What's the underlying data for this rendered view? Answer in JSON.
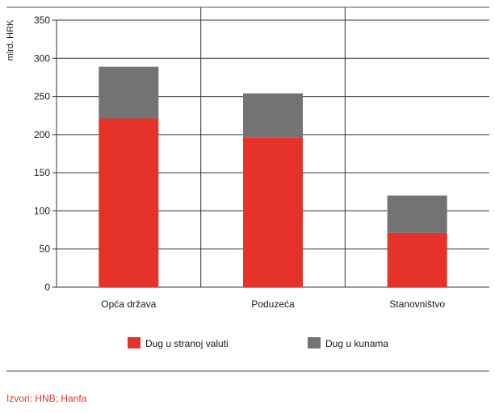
{
  "chart_data": {
    "type": "bar",
    "stacked": true,
    "categories": [
      "Opća država",
      "Poduzeća",
      "Stanovništvo"
    ],
    "series": [
      {
        "name": "Dug u stranoj valuti",
        "color": "#e63329",
        "values": [
          221,
          196,
          71
        ]
      },
      {
        "name": "Dug u kunama",
        "color": "#737373",
        "values": [
          68,
          58,
          49
        ]
      }
    ],
    "ylabel": "mlrd. HRK",
    "ylim": [
      0,
      350
    ],
    "yticks": [
      0,
      50,
      100,
      150,
      200,
      250,
      300,
      350
    ],
    "grid": {
      "horizontal": true,
      "vertical_category_separators": true
    },
    "legend_position": "bottom"
  },
  "source": "Izvori: HNB; Hanfa"
}
